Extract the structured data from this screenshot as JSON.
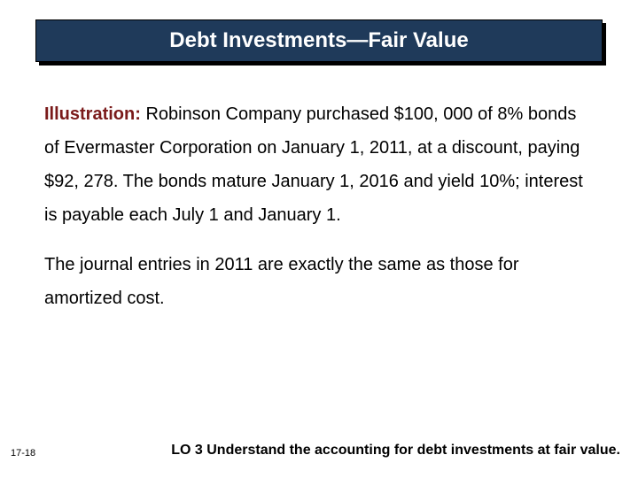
{
  "title": "Debt Investments—Fair Value",
  "illustration": {
    "label": "Illustration:",
    "text": "Robinson Company purchased $100, 000 of 8% bonds of Evermaster Corporation on January 1, 2011, at a discount, paying $92, 278. The bonds mature January 1, 2016 and yield 10%; interest is payable each July 1 and January 1."
  },
  "paragraph2": "The journal entries in 2011 are exactly the same as those for amortized cost.",
  "page_number": "17-18",
  "learning_objective": "LO 3  Understand the accounting for debt investments at fair value.",
  "colors": {
    "title_bg": "#1f3a5a",
    "title_text": "#ffffff",
    "label": "#7a1a1a",
    "body_text": "#000000",
    "background": "#ffffff"
  },
  "typography": {
    "title_fontsize": 24,
    "body_fontsize": 20,
    "lo_fontsize": 16,
    "page_fontsize": 11
  }
}
